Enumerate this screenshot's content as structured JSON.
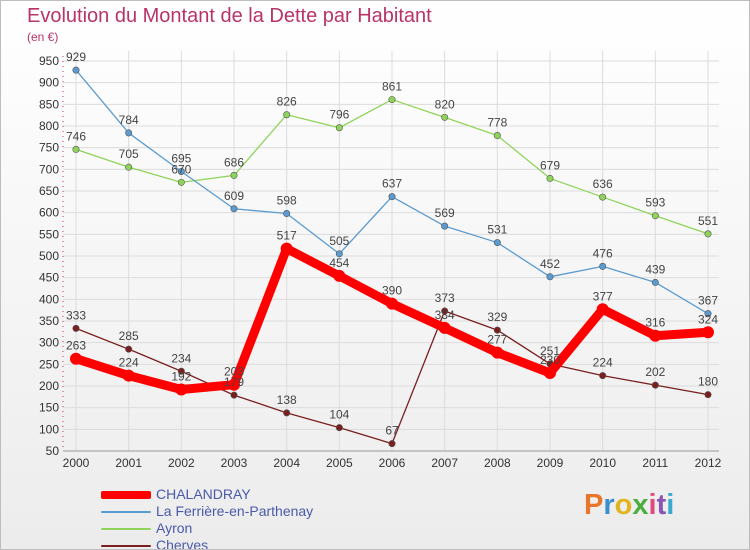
{
  "title": "Evolution du Montant de la Dette par Habitant",
  "unit_label": "(en €)",
  "logo": {
    "text": "Proxiti",
    "letter_colors": [
      "#e8752a",
      "#3a8fcf",
      "#e0b51f",
      "#4cae3f",
      "#e04a7d",
      "#8a55b5",
      "#39a9cf"
    ]
  },
  "chart_data": {
    "type": "line",
    "title": "Evolution du Montant de la Dette par Habitant",
    "ylabel": "(en €)",
    "xlabel": "",
    "x": [
      "2000",
      "2001",
      "2002",
      "2003",
      "2004",
      "2005",
      "2006",
      "2007",
      "2008",
      "2009",
      "2010",
      "2011",
      "2012"
    ],
    "ylim": [
      50,
      950
    ],
    "y_ticks": [
      50,
      100,
      150,
      200,
      250,
      300,
      350,
      400,
      450,
      500,
      550,
      600,
      650,
      700,
      750,
      800,
      850,
      900,
      950
    ],
    "grid": true,
    "legend_position": "bottom-left",
    "series": [
      {
        "name": "Cherves",
        "color": "#7a1f1f",
        "values": [
          333,
          285,
          234,
          179,
          138,
          104,
          67,
          373,
          329,
          251,
          224,
          202,
          180
        ]
      },
      {
        "name": "Ayron",
        "color": "#8fd45a",
        "values": [
          746,
          705,
          670,
          686,
          826,
          796,
          861,
          820,
          778,
          679,
          636,
          593,
          551
        ]
      },
      {
        "name": "La Ferrière-en-Parthenay",
        "color": "#5b9bd0",
        "values": [
          929,
          784,
          695,
          609,
          598,
          505,
          637,
          569,
          531,
          452,
          476,
          439,
          367
        ]
      },
      {
        "name": "CHALANDRAY",
        "color": "#ff0000",
        "values": [
          263,
          224,
          192,
          203,
          517,
          454,
          390,
          334,
          277,
          230,
          377,
          316,
          324
        ]
      }
    ],
    "legend_order": [
      "CHALANDRAY",
      "La Ferrière-en-Parthenay",
      "Ayron",
      "Cherves"
    ]
  }
}
